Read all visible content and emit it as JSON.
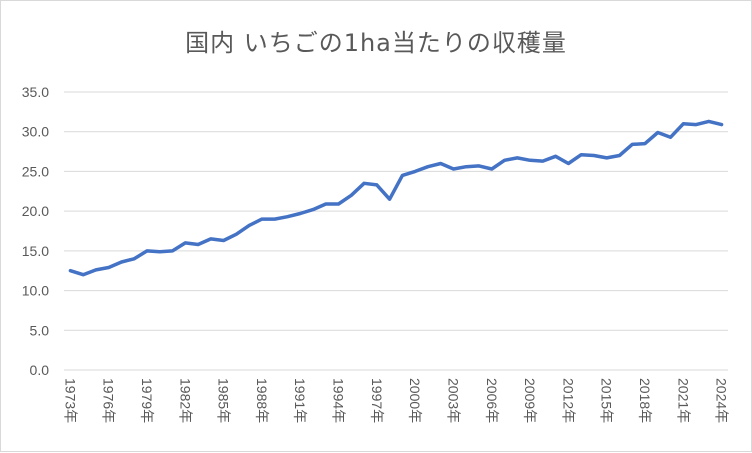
{
  "title": "国内 いちごの1ha当たりの収穫量",
  "colors": {
    "line": "#4472C4",
    "grid": "#D9D9D9",
    "text": "#595959",
    "border": "#D9D9D9"
  },
  "chart_data": {
    "type": "line",
    "title": "国内 いちごの1ha当たりの収穫量",
    "xlabel": "",
    "ylabel": "",
    "ylim": [
      0,
      35
    ],
    "yticks": [
      "0.0",
      "5.0",
      "10.0",
      "15.0",
      "20.0",
      "25.0",
      "30.0",
      "35.0"
    ],
    "grid": true,
    "legend": "none",
    "x_tick_labels": [
      "1973年",
      "1976年",
      "1979年",
      "1982年",
      "1985年",
      "1988年",
      "1991年",
      "1994年",
      "1997年",
      "2000年",
      "2003年",
      "2006年",
      "2009年",
      "2012年",
      "2015年",
      "2018年",
      "2021年",
      "2024年"
    ],
    "categories": [
      "1973年",
      "1974年",
      "1975年",
      "1976年",
      "1977年",
      "1978年",
      "1979年",
      "1980年",
      "1981年",
      "1982年",
      "1983年",
      "1984年",
      "1985年",
      "1986年",
      "1987年",
      "1988年",
      "1989年",
      "1990年",
      "1991年",
      "1992年",
      "1993年",
      "1994年",
      "1995年",
      "1996年",
      "1997年",
      "1998年",
      "1999年",
      "2000年",
      "2001年",
      "2002年",
      "2003年",
      "2004年",
      "2005年",
      "2006年",
      "2007年",
      "2008年",
      "2009年",
      "2010年",
      "2011年",
      "2012年",
      "2013年",
      "2014年",
      "2015年",
      "2016年",
      "2017年",
      "2018年",
      "2019年",
      "2020年",
      "2021年",
      "2022年",
      "2023年",
      "2024年"
    ],
    "series": [
      {
        "name": "1ha当たりの収穫量",
        "values": [
          12.5,
          12.0,
          12.6,
          12.9,
          13.6,
          14.0,
          15.0,
          14.9,
          15.0,
          16.0,
          15.8,
          16.5,
          16.3,
          17.1,
          18.2,
          19.0,
          19.0,
          19.3,
          19.7,
          20.2,
          20.9,
          20.9,
          22.0,
          23.5,
          23.3,
          21.5,
          24.5,
          25.0,
          25.6,
          26.0,
          25.3,
          25.6,
          25.7,
          25.3,
          26.4,
          26.7,
          26.4,
          26.3,
          26.9,
          26.0,
          27.1,
          27.0,
          26.7,
          27.0,
          28.4,
          28.5,
          29.9,
          29.3,
          31.0,
          30.9,
          31.3,
          30.9
        ]
      }
    ]
  }
}
